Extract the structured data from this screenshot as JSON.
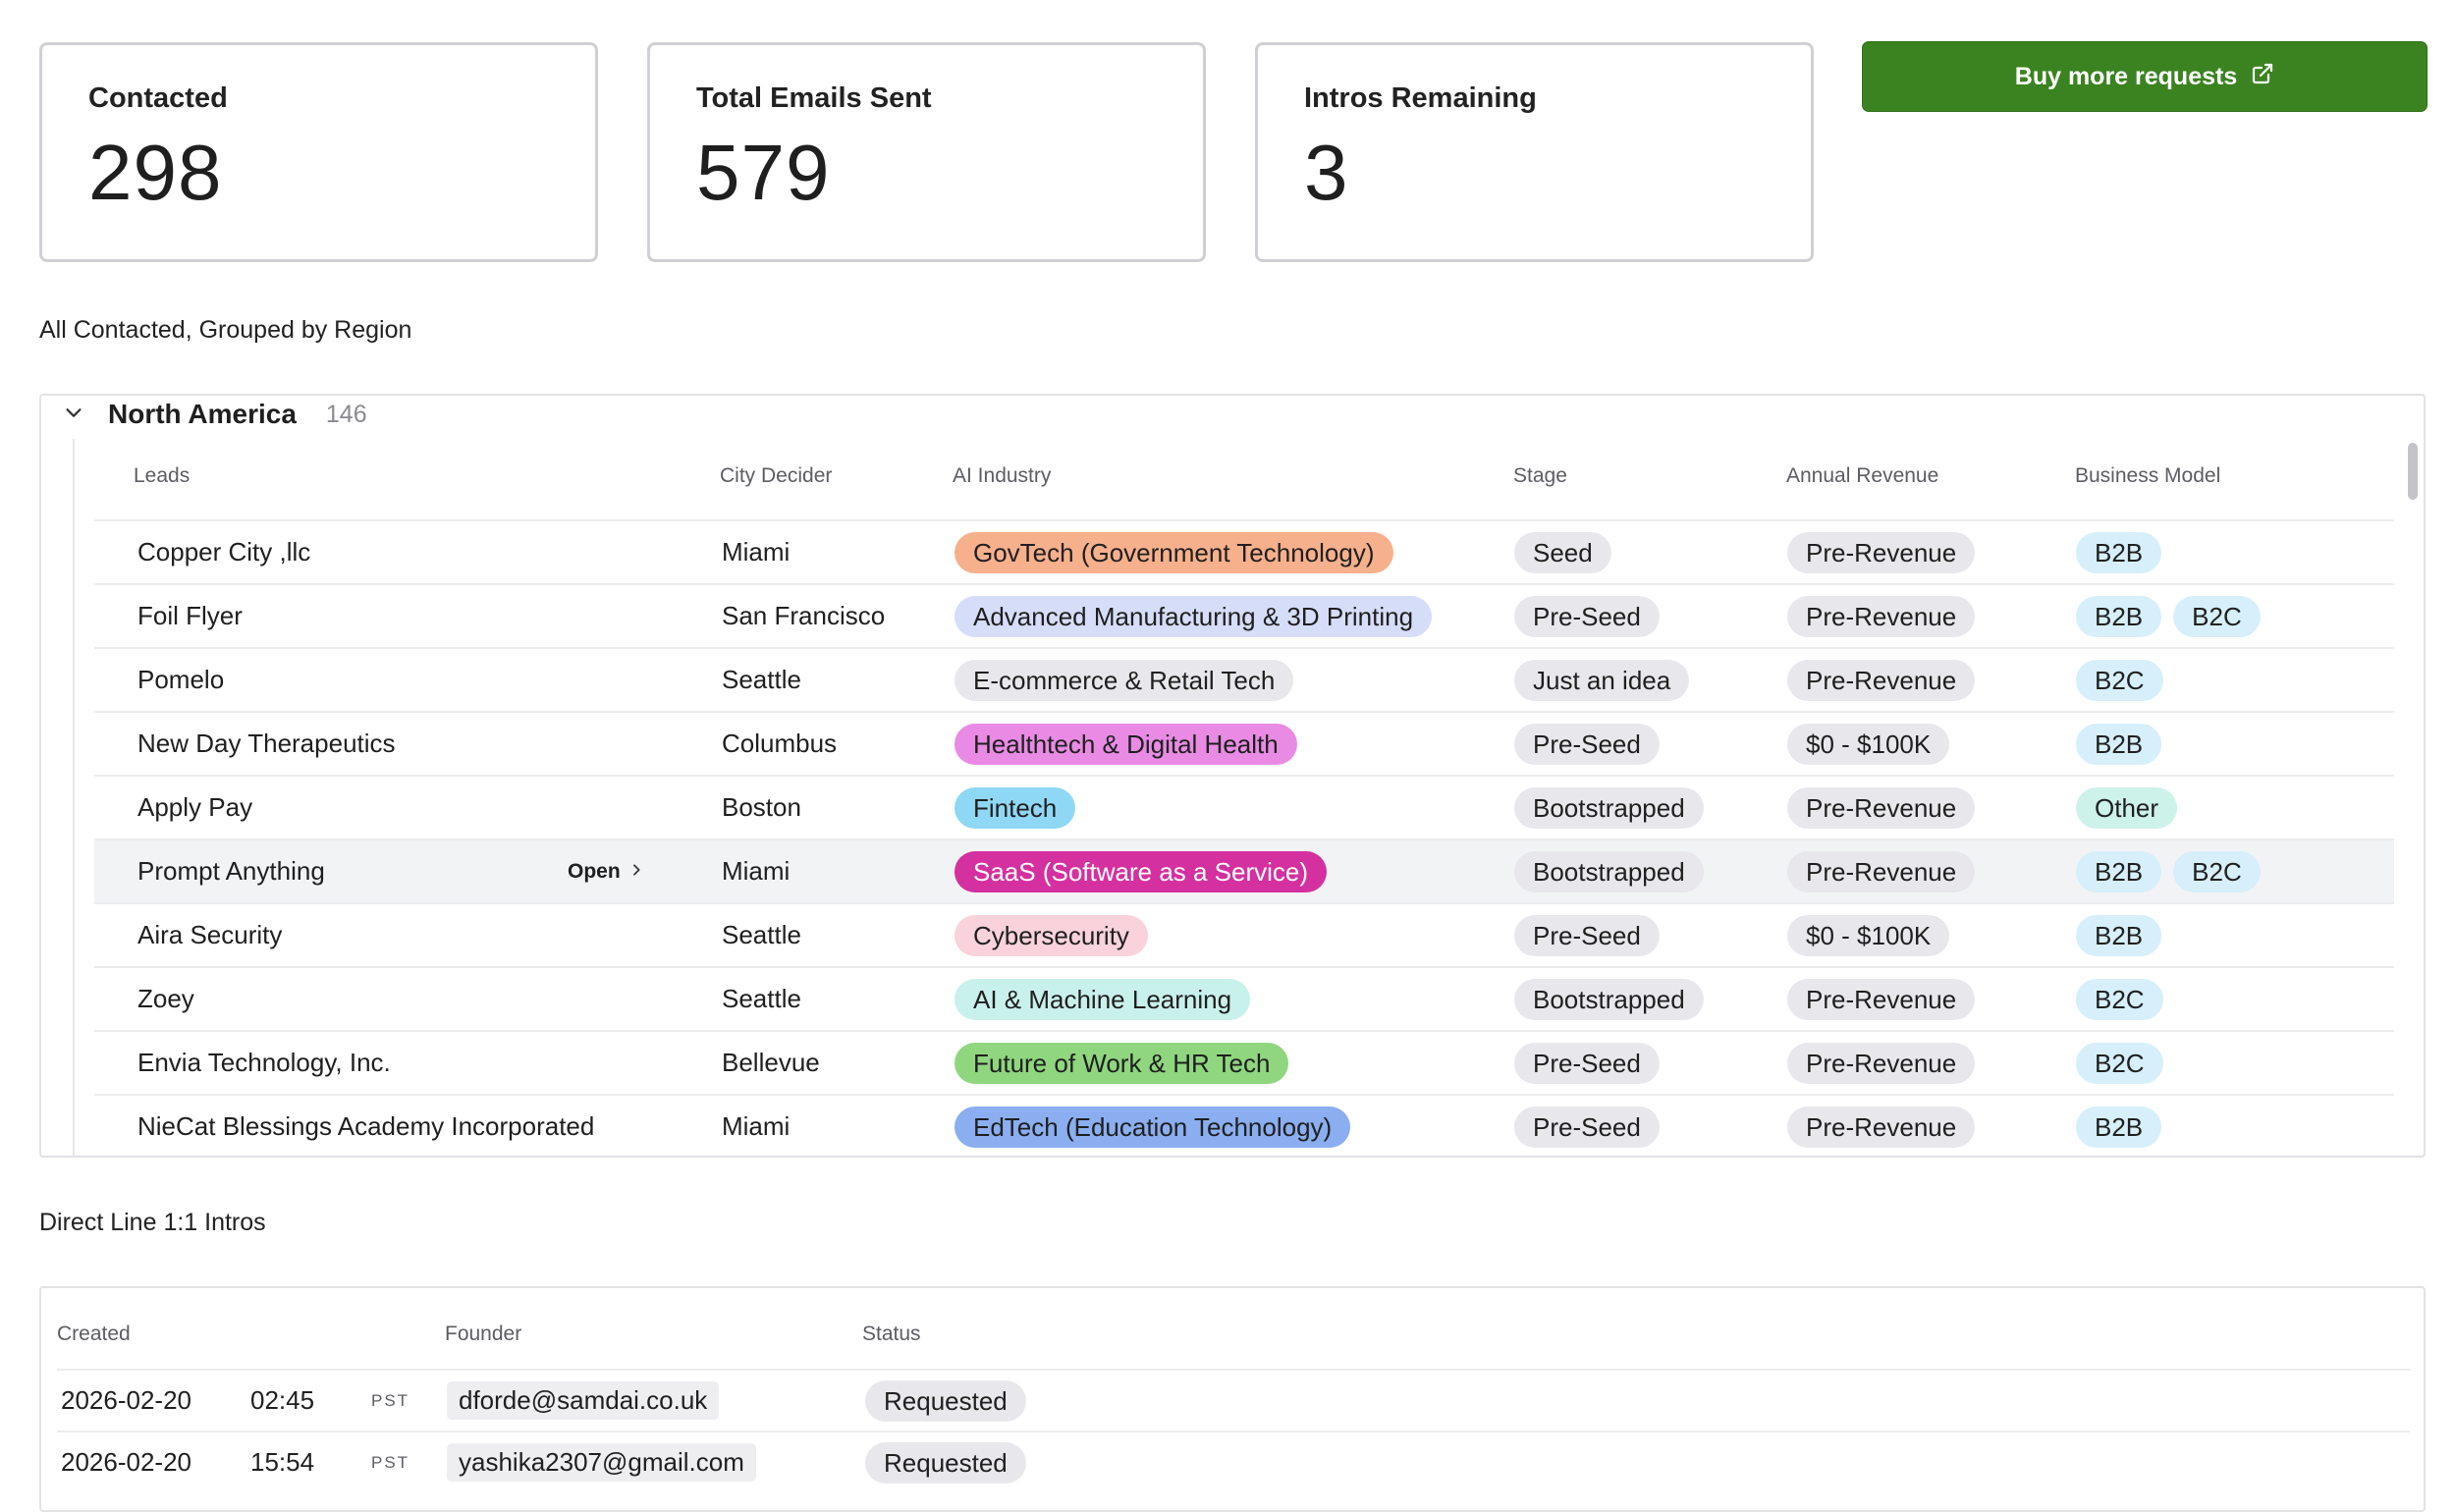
{
  "stats": [
    {
      "label": "Contacted",
      "value": "298"
    },
    {
      "label": "Total Emails Sent",
      "value": "579"
    },
    {
      "label": "Intros Remaining",
      "value": "3"
    }
  ],
  "buy_button": {
    "label": "Buy more requests",
    "icon": "external-link-icon"
  },
  "contacted_section": {
    "title": "All Contacted, Grouped by Region",
    "group": {
      "name": "North America",
      "count": "146"
    },
    "columns": [
      "Leads",
      "City Decider",
      "AI Industry",
      "Stage",
      "Annual Revenue",
      "Business Model"
    ],
    "open_label": "Open",
    "rows": [
      {
        "lead": "Copper City ,llc",
        "city": "Miami",
        "industry": {
          "label": "GovTech (Government Technology)",
          "bg": "#f7b08c"
        },
        "stage": "Seed",
        "revenue": "Pre-Revenue",
        "models": [
          "B2B"
        ]
      },
      {
        "lead": "Foil Flyer",
        "city": "San Francisco",
        "industry": {
          "label": "Advanced Manufacturing & 3D Printing",
          "bg": "#d5ddf9"
        },
        "stage": "Pre-Seed",
        "revenue": "Pre-Revenue",
        "models": [
          "B2B",
          "B2C"
        ]
      },
      {
        "lead": "Pomelo",
        "city": "Seattle",
        "industry": {
          "label": "E-commerce & Retail Tech",
          "bg": "#e8e8ec"
        },
        "stage": "Just an idea",
        "revenue": "Pre-Revenue",
        "models": [
          "B2C"
        ]
      },
      {
        "lead": "New Day Therapeutics",
        "city": "Columbus",
        "industry": {
          "label": "Healthtech & Digital Health",
          "bg": "#e98be4"
        },
        "stage": "Pre-Seed",
        "revenue": "$0 - $100K",
        "models": [
          "B2B"
        ]
      },
      {
        "lead": "Apply Pay",
        "city": "Boston",
        "industry": {
          "label": "Fintech",
          "bg": "#8ed8f5"
        },
        "stage": "Bootstrapped",
        "revenue": "Pre-Revenue",
        "models": [
          "Other"
        ]
      },
      {
        "lead": "Prompt Anything",
        "city": "Miami",
        "industry": {
          "label": "SaaS (Software as a Service)",
          "bg": "#d4309f",
          "fg": "#ffffff"
        },
        "stage": "Bootstrapped",
        "revenue": "Pre-Revenue",
        "models": [
          "B2B",
          "B2C"
        ],
        "hover": true
      },
      {
        "lead": "Aira Security",
        "city": "Seattle",
        "industry": {
          "label": "Cybersecurity",
          "bg": "#f9d2dc"
        },
        "stage": "Pre-Seed",
        "revenue": "$0 - $100K",
        "models": [
          "B2B"
        ]
      },
      {
        "lead": "Zoey",
        "city": "Seattle",
        "industry": {
          "label": "AI & Machine Learning",
          "bg": "#c9f1ec"
        },
        "stage": "Bootstrapped",
        "revenue": "Pre-Revenue",
        "models": [
          "B2C"
        ]
      },
      {
        "lead": "Envia Technology, Inc.",
        "city": "Bellevue",
        "industry": {
          "label": "Future of Work & HR Tech",
          "bg": "#8fd67f"
        },
        "stage": "Pre-Seed",
        "revenue": "Pre-Revenue",
        "models": [
          "B2C"
        ]
      },
      {
        "lead": "NieCat Blessings Academy Incorporated",
        "city": "Miami",
        "industry": {
          "label": "EdTech (Education Technology)",
          "bg": "#8aaef0"
        },
        "stage": "Pre-Seed",
        "revenue": "Pre-Revenue",
        "models": [
          "B2B"
        ]
      },
      {
        "lead": "",
        "city": "",
        "industry": {
          "label": "",
          "bg": "#f4b54a"
        },
        "stage": "",
        "revenue": "",
        "models": [
          "",
          ""
        ]
      }
    ]
  },
  "colors": {
    "neutral_pill": "#e8e8ec",
    "model_pill": "#d6effa",
    "other_pill": "#cdf2ea",
    "accent_green": "#3b8321"
  },
  "intros_section": {
    "title": "Direct Line 1:1 Intros",
    "columns": [
      "Created",
      "Founder",
      "Status"
    ],
    "rows": [
      {
        "date": "2026-02-20",
        "time": "02:45",
        "tz": "PST",
        "founder": "dforde@samdai.co.uk",
        "status": "Requested"
      },
      {
        "date": "2026-02-20",
        "time": "15:54",
        "tz": "PST",
        "founder": "yashika2307@gmail.com",
        "status": "Requested"
      }
    ]
  }
}
